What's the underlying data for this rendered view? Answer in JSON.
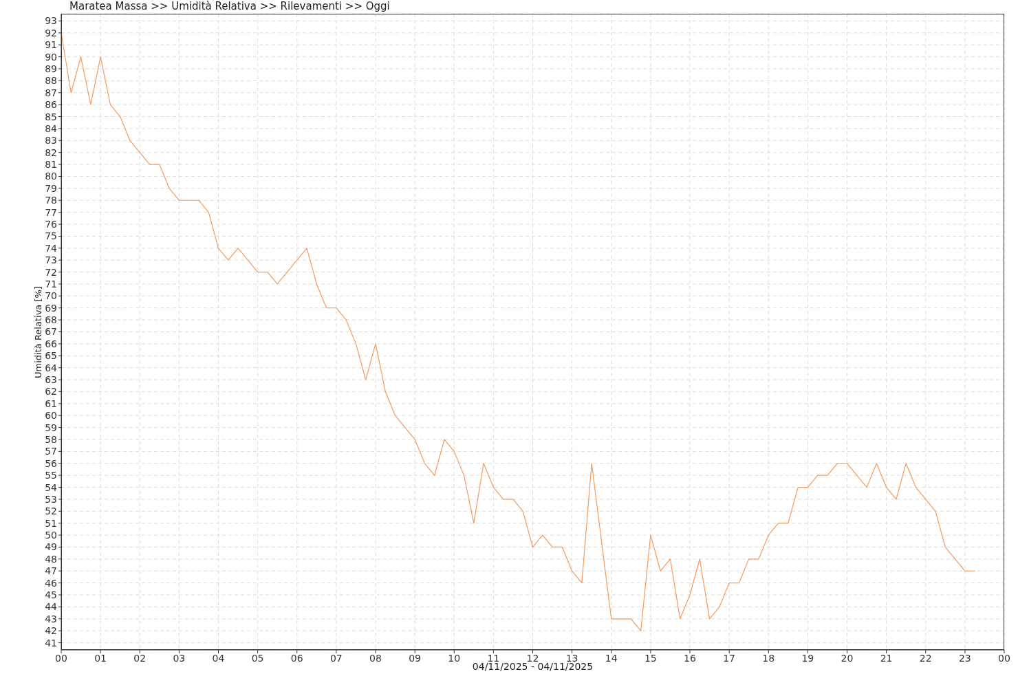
{
  "chart_data": {
    "type": "line",
    "title": "Maratea Massa >> Umidità Relativa >> Rilevamenti >> Oggi",
    "xlabel": "04/11/2025 - 04/11/2025",
    "ylabel": "Umidità Relativa [%]",
    "x": [
      0,
      0.25,
      0.5,
      0.75,
      1,
      1.25,
      1.5,
      1.75,
      2,
      2.25,
      2.5,
      2.75,
      3,
      3.25,
      3.5,
      3.75,
      4,
      4.25,
      4.5,
      4.75,
      5,
      5.25,
      5.5,
      5.75,
      6,
      6.25,
      6.5,
      6.75,
      7,
      7.25,
      7.5,
      7.75,
      8,
      8.25,
      8.5,
      8.75,
      9,
      9.25,
      9.5,
      9.75,
      10,
      10.25,
      10.5,
      10.75,
      11,
      11.25,
      11.5,
      11.75,
      12,
      12.25,
      12.5,
      12.75,
      13,
      13.25,
      13.5,
      14,
      14.25,
      14.5,
      14.75,
      15,
      15.25,
      15.5,
      15.75,
      16,
      16.25,
      16.5,
      16.75,
      17,
      17.25,
      17.5,
      17.75,
      18,
      18.25,
      18.5,
      18.75,
      19,
      19.25,
      19.5,
      19.75,
      20,
      20.25,
      20.5,
      20.75,
      21,
      21.25,
      21.5,
      21.75,
      22,
      22.25,
      22.5,
      22.75,
      23,
      23.25
    ],
    "values": [
      92,
      87,
      90,
      86,
      90,
      86,
      85,
      83,
      82,
      81,
      81,
      79,
      78,
      78,
      78,
      77,
      74,
      73,
      74,
      73,
      72,
      72,
      71,
      72,
      73,
      74,
      71,
      69,
      69,
      68,
      66,
      63,
      66,
      62,
      60,
      59,
      58,
      56,
      55,
      58,
      57,
      55,
      51,
      56,
      54,
      53,
      53,
      52,
      49,
      50,
      49,
      49,
      47,
      46,
      56,
      43,
      43,
      43,
      42,
      50,
      47,
      48,
      43,
      45,
      48,
      43,
      44,
      46,
      46,
      48,
      48,
      50,
      51,
      51,
      54,
      54,
      55,
      55,
      56,
      56,
      55,
      54,
      56,
      54,
      53,
      56,
      54,
      53,
      52,
      49,
      48,
      47,
      47
    ],
    "color": "#f49a5c",
    "line_style": "solid",
    "grid": true,
    "xlim": [
      0,
      24
    ],
    "xticks": [
      {
        "value": 0,
        "label": "00"
      },
      {
        "value": 1,
        "label": "01"
      },
      {
        "value": 2,
        "label": "02"
      },
      {
        "value": 3,
        "label": "03"
      },
      {
        "value": 4,
        "label": "04"
      },
      {
        "value": 5,
        "label": "05"
      },
      {
        "value": 6,
        "label": "06"
      },
      {
        "value": 7,
        "label": "07"
      },
      {
        "value": 8,
        "label": "08"
      },
      {
        "value": 9,
        "label": "09"
      },
      {
        "value": 10,
        "label": "10"
      },
      {
        "value": 11,
        "label": "11"
      },
      {
        "value": 12,
        "label": "12"
      },
      {
        "value": 13,
        "label": "13"
      },
      {
        "value": 14,
        "label": "14"
      },
      {
        "value": 15,
        "label": "15"
      },
      {
        "value": 16,
        "label": "16"
      },
      {
        "value": 17,
        "label": "17"
      },
      {
        "value": 18,
        "label": "18"
      },
      {
        "value": 19,
        "label": "19"
      },
      {
        "value": 20,
        "label": "20"
      },
      {
        "value": 21,
        "label": "21"
      },
      {
        "value": 22,
        "label": "22"
      },
      {
        "value": 23,
        "label": "23"
      },
      {
        "value": 24,
        "label": "00"
      }
    ],
    "ylim": [
      40.4,
      93.6
    ],
    "yticks": [
      41,
      42,
      43,
      44,
      45,
      46,
      47,
      48,
      49,
      50,
      51,
      52,
      53,
      54,
      55,
      56,
      57,
      58,
      59,
      60,
      61,
      62,
      63,
      64,
      65,
      66,
      67,
      68,
      69,
      70,
      71,
      72,
      73,
      74,
      75,
      76,
      77,
      78,
      79,
      80,
      81,
      82,
      83,
      84,
      85,
      86,
      87,
      88,
      89,
      90,
      91,
      92,
      93
    ]
  }
}
